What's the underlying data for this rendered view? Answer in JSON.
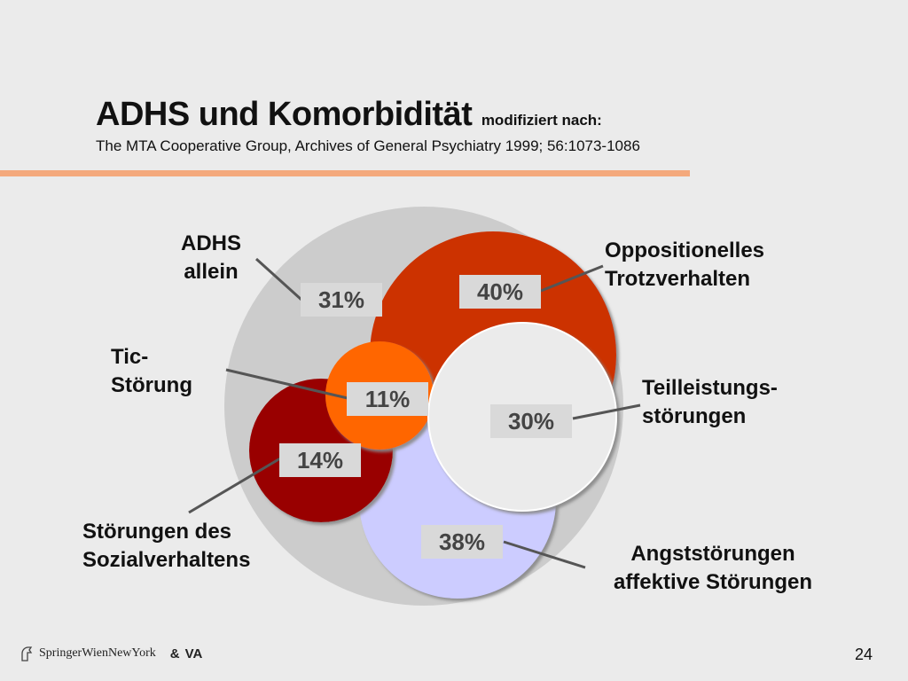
{
  "slide": {
    "title": "ADHS und Komorbidität",
    "title_suffix": "modifiziert nach:",
    "reference": "The MTA Cooperative Group, Archives of General Psychiatry 1999; 56:1073-1086",
    "page_number": "24"
  },
  "segments": [
    {
      "id": "adhs-allein",
      "label_line1": "ADHS",
      "label_line2": "allein",
      "percent": "31%",
      "color": "#cccccc"
    },
    {
      "id": "oppositionell",
      "label_line1": "Oppositionelles",
      "label_line2": "Trotzverhalten",
      "percent": "40%",
      "color": "#cc3300"
    },
    {
      "id": "tic",
      "label_line1": "Tic-",
      "label_line2": "Störung",
      "percent": "11%",
      "color": "#ff6600"
    },
    {
      "id": "teilleistung",
      "label_line1": "Teilleistungs-",
      "label_line2": "störungen",
      "percent": "30%",
      "color": "#ebebeb"
    },
    {
      "id": "sozialverhalten",
      "label_line1": "Störungen des",
      "label_line2": "Sozialverhaltens",
      "percent": "14%",
      "color": "#990000"
    },
    {
      "id": "angst",
      "label_line1": "Angststörungen",
      "label_line2": "affektive Störungen",
      "percent": "38%",
      "color": "#ccccff"
    }
  ],
  "footer": {
    "publisher": "SpringerWienNewYork",
    "amp": "&",
    "partner": "VA"
  }
}
